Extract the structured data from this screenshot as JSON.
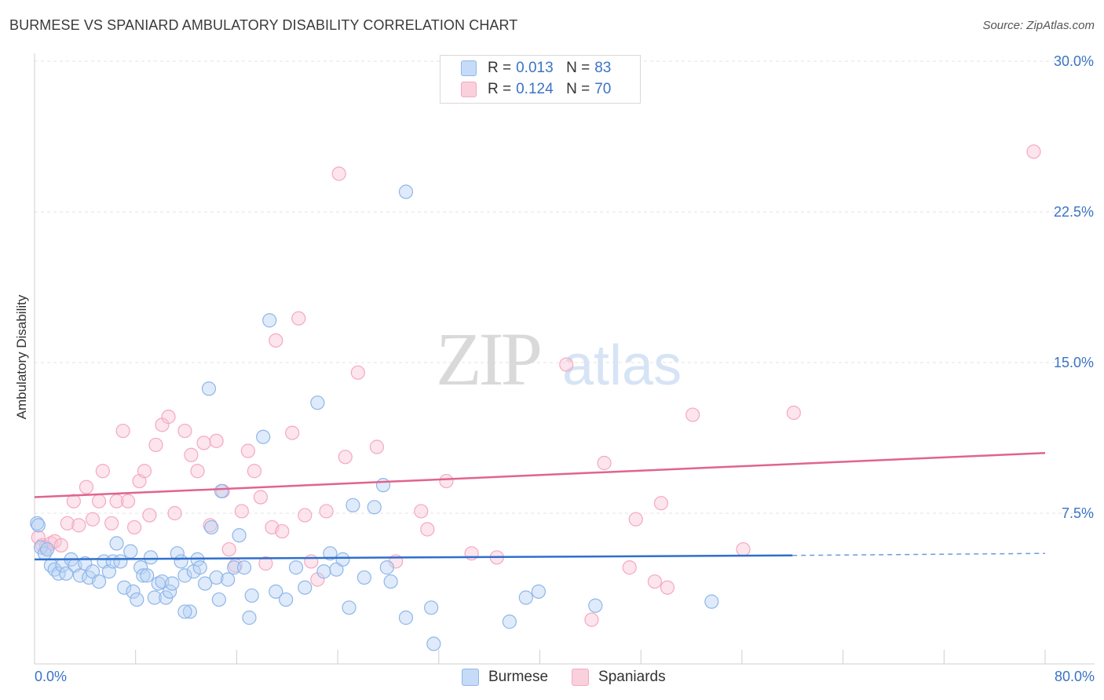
{
  "header": {
    "title": "BURMESE VS SPANIARD AMBULATORY DISABILITY CORRELATION CHART",
    "source": "Source: ZipAtlas.com"
  },
  "watermark": {
    "zip": "ZIP",
    "atlas": "atlas"
  },
  "legend": {
    "rows": [
      {
        "r_label": "R =",
        "r_value": "0.013",
        "n_label": "N =",
        "n_value": "83",
        "color": "#8fb6ea"
      },
      {
        "r_label": "R =",
        "r_value": "0.124",
        "n_label": "N =",
        "n_value": "70",
        "color": "#f5a8bf"
      }
    ]
  },
  "bottom_legend": {
    "items": [
      {
        "label": "Burmese",
        "color": "#8fb6ea"
      },
      {
        "label": "Spaniards",
        "color": "#f5a8bf"
      }
    ]
  },
  "chart_data": {
    "type": "scatter",
    "title": "BURMESE VS SPANIARD AMBULATORY DISABILITY CORRELATION CHART",
    "xlabel": "",
    "ylabel": "Ambulatory Disability",
    "xlim": [
      0,
      80
    ],
    "ylim": [
      0,
      30
    ],
    "x_tick_labels": [
      "0.0%",
      "80.0%"
    ],
    "y_ticks": [
      7.5,
      15.0,
      22.5,
      30.0
    ],
    "y_tick_labels": [
      "7.5%",
      "15.0%",
      "22.5%",
      "30.0%"
    ],
    "grid": true,
    "legend_position": "top-center",
    "series": [
      {
        "name": "Burmese",
        "color": "#8fb6ea",
        "line_color": "#2f6fcc",
        "trend": {
          "x0": 0,
          "y0": 5.2,
          "x1": 60,
          "y1": 5.4,
          "dashed_to_x": 80,
          "dashed_to_y": 5.5
        },
        "points": [
          [
            0.2,
            7.0
          ],
          [
            0.5,
            5.8
          ],
          [
            0.8,
            5.5
          ],
          [
            1.0,
            5.7
          ],
          [
            1.3,
            4.9
          ],
          [
            1.6,
            4.7
          ],
          [
            1.9,
            4.5
          ],
          [
            2.2,
            4.9
          ],
          [
            2.5,
            4.5
          ],
          [
            2.9,
            5.2
          ],
          [
            3.2,
            4.9
          ],
          [
            3.6,
            4.4
          ],
          [
            4.0,
            5.0
          ],
          [
            4.3,
            4.3
          ],
          [
            4.6,
            4.6
          ],
          [
            5.1,
            4.1
          ],
          [
            5.5,
            5.1
          ],
          [
            5.9,
            4.6
          ],
          [
            6.2,
            5.1
          ],
          [
            6.5,
            6.0
          ],
          [
            6.8,
            5.1
          ],
          [
            7.1,
            3.8
          ],
          [
            7.6,
            5.6
          ],
          [
            7.8,
            3.6
          ],
          [
            8.1,
            3.2
          ],
          [
            8.4,
            4.8
          ],
          [
            8.6,
            4.4
          ],
          [
            8.9,
            4.4
          ],
          [
            9.2,
            5.3
          ],
          [
            9.5,
            3.3
          ],
          [
            9.8,
            4.0
          ],
          [
            10.1,
            4.1
          ],
          [
            10.4,
            3.3
          ],
          [
            10.7,
            3.6
          ],
          [
            10.9,
            4.0
          ],
          [
            11.3,
            5.5
          ],
          [
            11.6,
            5.1
          ],
          [
            11.9,
            4.4
          ],
          [
            12.3,
            2.6
          ],
          [
            12.6,
            4.6
          ],
          [
            12.9,
            5.2
          ],
          [
            13.1,
            4.8
          ],
          [
            13.5,
            4.0
          ],
          [
            13.8,
            13.7
          ],
          [
            14.0,
            6.8
          ],
          [
            14.4,
            4.3
          ],
          [
            14.6,
            3.2
          ],
          [
            14.8,
            8.6
          ],
          [
            15.3,
            4.2
          ],
          [
            15.8,
            4.8
          ],
          [
            16.2,
            6.4
          ],
          [
            16.6,
            4.8
          ],
          [
            17.0,
            2.3
          ],
          [
            17.2,
            3.4
          ],
          [
            18.1,
            11.3
          ],
          [
            18.6,
            17.1
          ],
          [
            19.1,
            3.6
          ],
          [
            19.9,
            3.2
          ],
          [
            20.7,
            4.8
          ],
          [
            21.4,
            3.8
          ],
          [
            22.4,
            13.0
          ],
          [
            22.9,
            4.6
          ],
          [
            23.4,
            5.5
          ],
          [
            23.9,
            4.7
          ],
          [
            24.4,
            5.2
          ],
          [
            24.9,
            2.8
          ],
          [
            25.2,
            7.9
          ],
          [
            26.1,
            4.3
          ],
          [
            26.9,
            7.8
          ],
          [
            27.6,
            8.9
          ],
          [
            27.9,
            4.8
          ],
          [
            28.2,
            4.1
          ],
          [
            29.4,
            23.5
          ],
          [
            29.4,
            2.3
          ],
          [
            31.4,
            2.8
          ],
          [
            31.6,
            1.0
          ],
          [
            37.6,
            2.1
          ],
          [
            38.9,
            3.3
          ],
          [
            39.9,
            3.6
          ],
          [
            44.4,
            2.9
          ],
          [
            53.6,
            3.1
          ],
          [
            0.3,
            6.9
          ],
          [
            11.9,
            2.6
          ]
        ]
      },
      {
        "name": "Spaniards",
        "color": "#f5a8bf",
        "line_color": "#e0648f",
        "trend": {
          "x0": 0,
          "y0": 8.3,
          "x1": 80,
          "y1": 10.5
        },
        "points": [
          [
            0.3,
            6.3
          ],
          [
            0.6,
            5.9
          ],
          [
            0.9,
            5.8
          ],
          [
            1.3,
            6.0
          ],
          [
            1.6,
            6.1
          ],
          [
            2.1,
            5.9
          ],
          [
            2.6,
            7.0
          ],
          [
            3.1,
            8.1
          ],
          [
            3.5,
            6.9
          ],
          [
            4.1,
            8.8
          ],
          [
            4.6,
            7.2
          ],
          [
            5.1,
            8.1
          ],
          [
            5.4,
            9.6
          ],
          [
            6.1,
            7.0
          ],
          [
            6.5,
            8.1
          ],
          [
            7.0,
            11.6
          ],
          [
            7.4,
            8.1
          ],
          [
            7.9,
            6.8
          ],
          [
            8.3,
            9.1
          ],
          [
            8.7,
            9.6
          ],
          [
            9.1,
            7.4
          ],
          [
            9.6,
            10.9
          ],
          [
            10.1,
            11.9
          ],
          [
            10.6,
            12.3
          ],
          [
            11.1,
            7.5
          ],
          [
            11.9,
            11.6
          ],
          [
            12.4,
            10.4
          ],
          [
            12.9,
            9.6
          ],
          [
            13.4,
            11.0
          ],
          [
            13.9,
            6.9
          ],
          [
            14.4,
            11.1
          ],
          [
            14.9,
            8.6
          ],
          [
            15.4,
            5.7
          ],
          [
            15.9,
            4.9
          ],
          [
            16.4,
            7.6
          ],
          [
            16.9,
            10.6
          ],
          [
            17.4,
            9.6
          ],
          [
            17.9,
            8.3
          ],
          [
            18.3,
            5.0
          ],
          [
            18.8,
            6.8
          ],
          [
            19.1,
            16.1
          ],
          [
            19.6,
            6.6
          ],
          [
            20.4,
            11.5
          ],
          [
            20.9,
            17.2
          ],
          [
            21.4,
            7.4
          ],
          [
            21.9,
            5.1
          ],
          [
            22.4,
            4.2
          ],
          [
            23.1,
            7.6
          ],
          [
            24.1,
            24.4
          ],
          [
            24.6,
            10.3
          ],
          [
            25.6,
            14.5
          ],
          [
            27.1,
            10.8
          ],
          [
            28.6,
            5.1
          ],
          [
            30.6,
            7.6
          ],
          [
            31.1,
            6.7
          ],
          [
            32.6,
            9.1
          ],
          [
            34.6,
            5.5
          ],
          [
            36.6,
            5.3
          ],
          [
            42.1,
            14.9
          ],
          [
            44.1,
            2.2
          ],
          [
            45.1,
            10.0
          ],
          [
            47.1,
            4.8
          ],
          [
            47.6,
            7.2
          ],
          [
            49.1,
            4.1
          ],
          [
            49.6,
            8.0
          ],
          [
            50.1,
            3.8
          ],
          [
            52.1,
            12.4
          ],
          [
            56.1,
            5.7
          ],
          [
            60.1,
            12.5
          ],
          [
            79.1,
            25.5
          ]
        ]
      }
    ]
  }
}
